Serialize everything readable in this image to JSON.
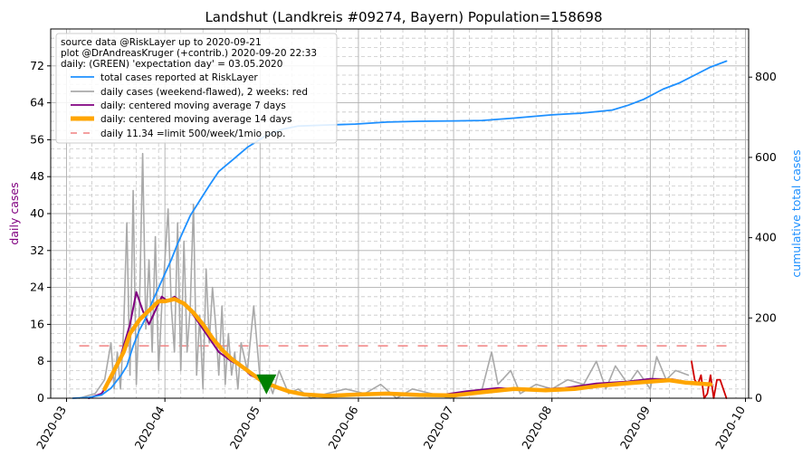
{
  "chart_data": {
    "type": "line",
    "title": "Landshut (Landkreis #09274, Bayern) Population=158698",
    "ylabel_left": "daily cases",
    "ylabel_right": "cumulative total cases",
    "ylim_left": [
      0,
      80
    ],
    "ylim_right": [
      0,
      920
    ],
    "xlim": [
      "2020-02-25",
      "2020-10-02"
    ],
    "x_ticks": [
      "2020-03",
      "2020-04",
      "2020-05",
      "2020-06",
      "2020-07",
      "2020-08",
      "2020-09",
      "2020-10"
    ],
    "y_ticks_left": [
      "0",
      "8",
      "16",
      "24",
      "32",
      "40",
      "48",
      "56",
      "64",
      "72"
    ],
    "y_ticks_right": [
      "0",
      "200",
      "400",
      "600",
      "800"
    ],
    "grid": true,
    "legend_position": "top-left",
    "source_text": [
      "source data @RiskLayer up to 2020-09-21",
      "plot @DrAndreasKruger (+contrib.) 2020-09-20 22:33",
      "daily: (GREEN) 'expectation day' = 03.05.2020"
    ],
    "legend": [
      {
        "label": "total cases reported at RiskLayer",
        "color": "#1e90ff"
      },
      {
        "label": "daily cases (weekend-flawed), 2 weeks: red",
        "color": "#a9a9a9"
      },
      {
        "label": "daily: centered moving average 7 days",
        "color": "#800080"
      },
      {
        "label": "daily: centered moving average 14 days",
        "color": "#ffa500"
      },
      {
        "label": "daily 11.34 =limit 500/week/1mio pop.",
        "color": "#f08080"
      }
    ],
    "limit_line": 11.34,
    "expectation_day": {
      "date": "2020-05-03",
      "y": 3,
      "color": "#008000"
    },
    "series": [
      {
        "name": "total cases reported at RiskLayer",
        "axis": "right",
        "color": "#1e90ff",
        "points": [
          [
            "2020-03-03",
            0
          ],
          [
            "2020-03-08",
            2
          ],
          [
            "2020-03-12",
            8
          ],
          [
            "2020-03-15",
            25
          ],
          [
            "2020-03-18",
            55
          ],
          [
            "2020-03-20",
            80
          ],
          [
            "2020-03-22",
            130
          ],
          [
            "2020-03-24",
            170
          ],
          [
            "2020-03-26",
            200
          ],
          [
            "2020-03-28",
            240
          ],
          [
            "2020-03-30",
            275
          ],
          [
            "2020-04-01",
            310
          ],
          [
            "2020-04-03",
            345
          ],
          [
            "2020-04-05",
            385
          ],
          [
            "2020-04-07",
            420
          ],
          [
            "2020-04-09",
            455
          ],
          [
            "2020-04-11",
            480
          ],
          [
            "2020-04-13",
            505
          ],
          [
            "2020-04-15",
            530
          ],
          [
            "2020-04-18",
            565
          ],
          [
            "2020-04-21",
            585
          ],
          [
            "2020-04-24",
            605
          ],
          [
            "2020-04-27",
            625
          ],
          [
            "2020-04-30",
            640
          ],
          [
            "2020-05-03",
            655
          ],
          [
            "2020-05-08",
            670
          ],
          [
            "2020-05-13",
            678
          ],
          [
            "2020-05-20",
            680
          ],
          [
            "2020-05-31",
            683
          ],
          [
            "2020-06-10",
            688
          ],
          [
            "2020-06-20",
            690
          ],
          [
            "2020-07-01",
            691
          ],
          [
            "2020-07-10",
            692
          ],
          [
            "2020-07-20",
            698
          ],
          [
            "2020-08-01",
            706
          ],
          [
            "2020-08-10",
            710
          ],
          [
            "2020-08-20",
            718
          ],
          [
            "2020-08-25",
            730
          ],
          [
            "2020-08-30",
            745
          ],
          [
            "2020-09-05",
            770
          ],
          [
            "2020-09-10",
            785
          ],
          [
            "2020-09-15",
            805
          ],
          [
            "2020-09-20",
            825
          ],
          [
            "2020-09-25",
            840
          ]
        ]
      },
      {
        "name": "daily cases (weekend-flawed), 2 weeks: red",
        "axis": "left",
        "color": "#a9a9a9",
        "points": [
          [
            "2020-03-05",
            0
          ],
          [
            "2020-03-10",
            1
          ],
          [
            "2020-03-13",
            4
          ],
          [
            "2020-03-15",
            12
          ],
          [
            "2020-03-16",
            2
          ],
          [
            "2020-03-17",
            10
          ],
          [
            "2020-03-18",
            2
          ],
          [
            "2020-03-19",
            15
          ],
          [
            "2020-03-20",
            38
          ],
          [
            "2020-03-21",
            5
          ],
          [
            "2020-03-22",
            45
          ],
          [
            "2020-03-23",
            3
          ],
          [
            "2020-03-24",
            20
          ],
          [
            "2020-03-25",
            53
          ],
          [
            "2020-03-26",
            15
          ],
          [
            "2020-03-27",
            30
          ],
          [
            "2020-03-28",
            10
          ],
          [
            "2020-03-29",
            35
          ],
          [
            "2020-03-30",
            6
          ],
          [
            "2020-03-31",
            20
          ],
          [
            "2020-04-01",
            30
          ],
          [
            "2020-04-02",
            41
          ],
          [
            "2020-04-03",
            20
          ],
          [
            "2020-04-04",
            10
          ],
          [
            "2020-04-05",
            38
          ],
          [
            "2020-04-06",
            6
          ],
          [
            "2020-04-07",
            34
          ],
          [
            "2020-04-08",
            10
          ],
          [
            "2020-04-09",
            20
          ],
          [
            "2020-04-10",
            42
          ],
          [
            "2020-04-11",
            5
          ],
          [
            "2020-04-12",
            18
          ],
          [
            "2020-04-13",
            2
          ],
          [
            "2020-04-14",
            28
          ],
          [
            "2020-04-15",
            12
          ],
          [
            "2020-04-16",
            24
          ],
          [
            "2020-04-17",
            16
          ],
          [
            "2020-04-18",
            5
          ],
          [
            "2020-04-19",
            20
          ],
          [
            "2020-04-20",
            3
          ],
          [
            "2020-04-21",
            14
          ],
          [
            "2020-04-22",
            5
          ],
          [
            "2020-04-23",
            10
          ],
          [
            "2020-04-24",
            2
          ],
          [
            "2020-04-25",
            12
          ],
          [
            "2020-04-27",
            6
          ],
          [
            "2020-04-29",
            20
          ],
          [
            "2020-05-01",
            4
          ],
          [
            "2020-05-03",
            5
          ],
          [
            "2020-05-05",
            1
          ],
          [
            "2020-05-07",
            6
          ],
          [
            "2020-05-10",
            1
          ],
          [
            "2020-05-13",
            2
          ],
          [
            "2020-05-17",
            0
          ],
          [
            "2020-05-22",
            1
          ],
          [
            "2020-05-28",
            2
          ],
          [
            "2020-06-03",
            1
          ],
          [
            "2020-06-08",
            3
          ],
          [
            "2020-06-13",
            0
          ],
          [
            "2020-06-18",
            2
          ],
          [
            "2020-06-24",
            1
          ],
          [
            "2020-06-30",
            0
          ],
          [
            "2020-07-05",
            1
          ],
          [
            "2020-07-10",
            2
          ],
          [
            "2020-07-13",
            10
          ],
          [
            "2020-07-15",
            3
          ],
          [
            "2020-07-19",
            6
          ],
          [
            "2020-07-22",
            1
          ],
          [
            "2020-07-27",
            3
          ],
          [
            "2020-08-01",
            2
          ],
          [
            "2020-08-06",
            4
          ],
          [
            "2020-08-11",
            3
          ],
          [
            "2020-08-15",
            8
          ],
          [
            "2020-08-18",
            2
          ],
          [
            "2020-08-21",
            7
          ],
          [
            "2020-08-25",
            3
          ],
          [
            "2020-08-28",
            6
          ],
          [
            "2020-09-01",
            2
          ],
          [
            "2020-09-03",
            9
          ],
          [
            "2020-09-06",
            4
          ],
          [
            "2020-09-09",
            6
          ],
          [
            "2020-09-13",
            5
          ]
        ]
      },
      {
        "name": "daily cases, last 2 weeks",
        "axis": "left",
        "color": "#d00000",
        "points": [
          [
            "2020-09-14",
            8
          ],
          [
            "2020-09-15",
            4
          ],
          [
            "2020-09-16",
            3
          ],
          [
            "2020-09-17",
            5
          ],
          [
            "2020-09-18",
            0
          ],
          [
            "2020-09-19",
            1
          ],
          [
            "2020-09-20",
            5
          ],
          [
            "2020-09-21",
            0
          ],
          [
            "2020-09-22",
            4
          ],
          [
            "2020-09-23",
            4
          ],
          [
            "2020-09-24",
            2
          ],
          [
            "2020-09-25",
            0
          ]
        ]
      },
      {
        "name": "daily: centered moving average 7 days",
        "axis": "left",
        "color": "#800080",
        "points": [
          [
            "2020-03-08",
            0
          ],
          [
            "2020-03-12",
            1
          ],
          [
            "2020-03-15",
            4
          ],
          [
            "2020-03-18",
            9
          ],
          [
            "2020-03-21",
            16
          ],
          [
            "2020-03-23",
            23
          ],
          [
            "2020-03-25",
            19
          ],
          [
            "2020-03-27",
            16
          ],
          [
            "2020-03-29",
            19
          ],
          [
            "2020-03-31",
            22
          ],
          [
            "2020-04-02",
            21
          ],
          [
            "2020-04-04",
            22
          ],
          [
            "2020-04-06",
            21
          ],
          [
            "2020-04-08",
            20
          ],
          [
            "2020-04-10",
            18
          ],
          [
            "2020-04-12",
            16
          ],
          [
            "2020-04-14",
            14
          ],
          [
            "2020-04-16",
            12
          ],
          [
            "2020-04-18",
            10
          ],
          [
            "2020-04-20",
            9
          ],
          [
            "2020-04-22",
            8
          ],
          [
            "2020-04-25",
            7
          ],
          [
            "2020-04-28",
            5
          ],
          [
            "2020-05-01",
            4
          ],
          [
            "2020-05-04",
            3
          ],
          [
            "2020-05-08",
            2
          ],
          [
            "2020-05-12",
            1.2
          ],
          [
            "2020-05-18",
            0.6
          ],
          [
            "2020-05-25",
            0.5
          ],
          [
            "2020-06-05",
            1
          ],
          [
            "2020-06-15",
            0.8
          ],
          [
            "2020-06-25",
            0.5
          ],
          [
            "2020-07-05",
            1.5
          ],
          [
            "2020-07-15",
            2.2
          ],
          [
            "2020-07-25",
            1.8
          ],
          [
            "2020-08-05",
            2.2
          ],
          [
            "2020-08-15",
            3.2
          ],
          [
            "2020-08-25",
            3.6
          ],
          [
            "2020-09-01",
            4.2
          ],
          [
            "2020-09-08",
            4.1
          ],
          [
            "2020-09-14",
            3.3
          ]
        ]
      },
      {
        "name": "daily: centered moving average 14 days",
        "axis": "left",
        "color": "#ffa500",
        "points": [
          [
            "2020-03-13",
            2
          ],
          [
            "2020-03-16",
            6
          ],
          [
            "2020-03-19",
            10
          ],
          [
            "2020-03-21",
            14
          ],
          [
            "2020-03-24",
            17
          ],
          [
            "2020-03-27",
            19
          ],
          [
            "2020-03-30",
            21
          ],
          [
            "2020-04-01",
            21
          ],
          [
            "2020-04-04",
            21.5
          ],
          [
            "2020-04-07",
            20.5
          ],
          [
            "2020-04-10",
            18.5
          ],
          [
            "2020-04-13",
            16
          ],
          [
            "2020-04-16",
            13
          ],
          [
            "2020-04-19",
            10.5
          ],
          [
            "2020-04-22",
            8.5
          ],
          [
            "2020-04-25",
            7
          ],
          [
            "2020-04-28",
            5.5
          ],
          [
            "2020-05-01",
            4
          ],
          [
            "2020-05-04",
            3
          ],
          [
            "2020-05-07",
            2.2
          ],
          [
            "2020-05-10",
            1.5
          ],
          [
            "2020-05-15",
            0.8
          ],
          [
            "2020-05-22",
            0.5
          ],
          [
            "2020-06-01",
            0.8
          ],
          [
            "2020-06-10",
            1
          ],
          [
            "2020-06-20",
            0.7
          ],
          [
            "2020-07-01",
            0.6
          ],
          [
            "2020-07-10",
            1.3
          ],
          [
            "2020-07-20",
            2
          ],
          [
            "2020-07-30",
            1.7
          ],
          [
            "2020-08-08",
            2
          ],
          [
            "2020-08-16",
            2.7
          ],
          [
            "2020-08-24",
            3.2
          ],
          [
            "2020-09-01",
            3.6
          ],
          [
            "2020-09-07",
            3.9
          ],
          [
            "2020-09-12",
            3.4
          ],
          [
            "2020-09-20",
            3
          ]
        ]
      }
    ]
  }
}
